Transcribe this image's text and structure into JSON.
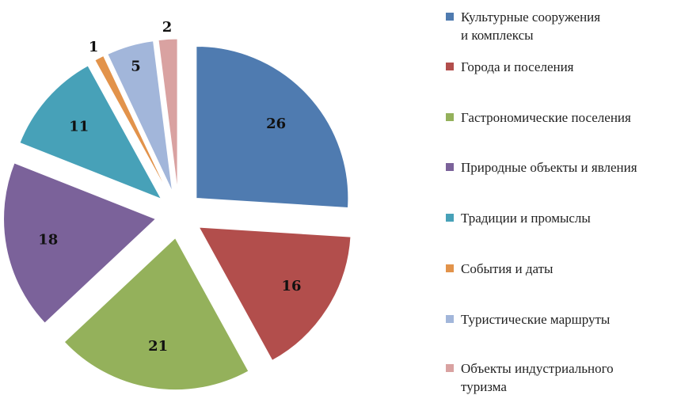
{
  "chart_data": {
    "type": "pie",
    "exploded": true,
    "start_angle_deg": 0,
    "direction": "clockwise",
    "legend_position": "right",
    "series": [
      {
        "label_lines": [
          "Культурные сооружения",
          "и комплексы"
        ],
        "value": 26,
        "color": "#4F7BB0"
      },
      {
        "label_lines": [
          "Города и поселения"
        ],
        "value": 16,
        "color": "#B24E4C"
      },
      {
        "label_lines": [
          "Гастрономические поселения"
        ],
        "value": 21,
        "color": "#94B15B"
      },
      {
        "label_lines": [
          "Природные объекты и явления"
        ],
        "value": 18,
        "color": "#7B629A"
      },
      {
        "label_lines": [
          "Традиции и промыслы"
        ],
        "value": 11,
        "color": "#47A1B8"
      },
      {
        "label_lines": [
          "События и даты"
        ],
        "value": 1,
        "color": "#E2934B"
      },
      {
        "label_lines": [
          "Туристические маршруты"
        ],
        "value": 5,
        "color": "#A2B6DA"
      },
      {
        "label_lines": [
          "Объекты индустриального",
          "туризма"
        ],
        "value": 2,
        "color": "#D9A2A1"
      }
    ]
  }
}
